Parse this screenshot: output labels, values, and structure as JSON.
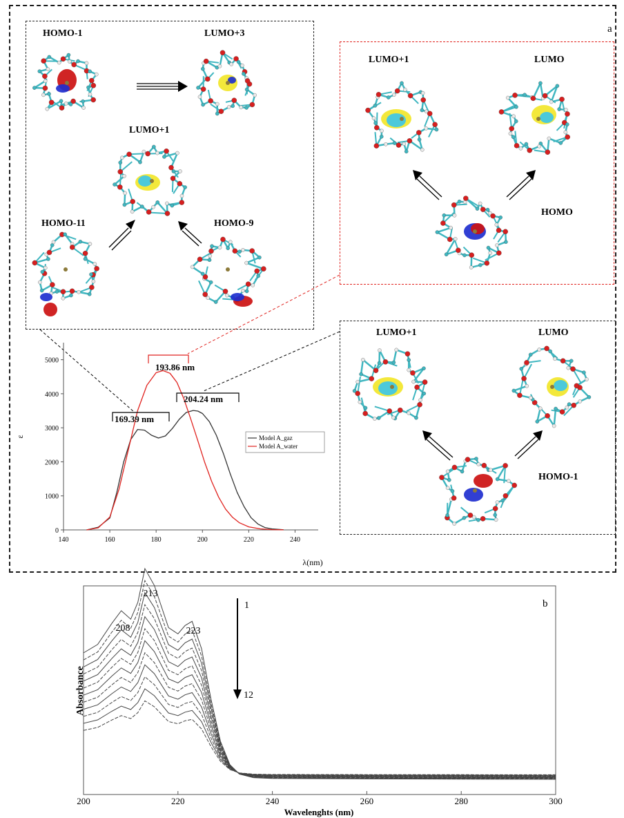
{
  "panel_a": {
    "tag": "a",
    "box_left": {
      "labels": [
        "HOMO-1",
        "LUMO+3",
        "LUMO+1",
        "HOMO-11",
        "HOMO-9"
      ]
    },
    "box_red": {
      "labels": [
        "LUMO+1",
        "LUMO",
        "HOMO"
      ]
    },
    "box_bottom": {
      "labels": [
        "LUMO+1",
        "LUMO",
        "HOMO-1"
      ]
    },
    "peak_labels": [
      "193.86 nm",
      "204.24 nm",
      "169.39 nm"
    ]
  },
  "panel_b": {
    "tag": "b",
    "peak_labels": [
      "213",
      "208",
      "223"
    ],
    "arrow_labels": [
      "1",
      "12"
    ]
  },
  "colors": {
    "gas": "#333333",
    "water": "#e0221e",
    "atom_c": "#3fb6c0",
    "atom_o": "#d61f1f",
    "atom_h": "#e9e9e9",
    "lobe_yellow": "#f2e62a",
    "lobe_blue": "#1f2fcf",
    "lobe_red": "#cc1111",
    "lobe_cyan": "#3ec6e8"
  },
  "chart_data": [
    {
      "type": "line",
      "title": "",
      "xlabel": "λ(nm)",
      "ylabel": "ε",
      "xlim": [
        140,
        250
      ],
      "ylim": [
        0,
        5500
      ],
      "xticks": [
        140,
        160,
        180,
        200,
        220,
        240
      ],
      "yticks": [
        0,
        1000,
        2000,
        3000,
        4000,
        5000
      ],
      "legend_position": "right",
      "series": [
        {
          "name": "Model A_gaz",
          "color": "#333333",
          "x": [
            150,
            155,
            160,
            163,
            166,
            169,
            172,
            175,
            178,
            181,
            184,
            187,
            190,
            193,
            196,
            198,
            200,
            203,
            206,
            209,
            212,
            215,
            218,
            221,
            224,
            227,
            230,
            235
          ],
          "y": [
            0,
            80,
            350,
            1100,
            2000,
            2650,
            2950,
            2930,
            2780,
            2700,
            2760,
            2980,
            3250,
            3450,
            3510,
            3490,
            3420,
            3180,
            2780,
            2250,
            1650,
            1100,
            680,
            360,
            170,
            70,
            30,
            5
          ]
        },
        {
          "name": "Model A_water",
          "color": "#e0221e",
          "x": [
            150,
            155,
            160,
            164,
            168,
            172,
            176,
            180,
            183,
            186,
            189,
            192,
            195,
            198,
            201,
            204,
            207,
            210,
            213,
            216,
            220,
            225,
            230,
            235
          ],
          "y": [
            0,
            60,
            380,
            1200,
            2350,
            3500,
            4250,
            4620,
            4680,
            4600,
            4330,
            3850,
            3250,
            2620,
            1980,
            1420,
            960,
            610,
            370,
            210,
            90,
            30,
            8,
            2
          ]
        }
      ]
    },
    {
      "type": "line",
      "title": "",
      "xlabel": "Wavelenghts (nm)",
      "ylabel": "Absorbance",
      "xlim": [
        200,
        300
      ],
      "xticks": [
        200,
        220,
        240,
        260,
        280,
        300
      ],
      "series_count": 12
    }
  ]
}
